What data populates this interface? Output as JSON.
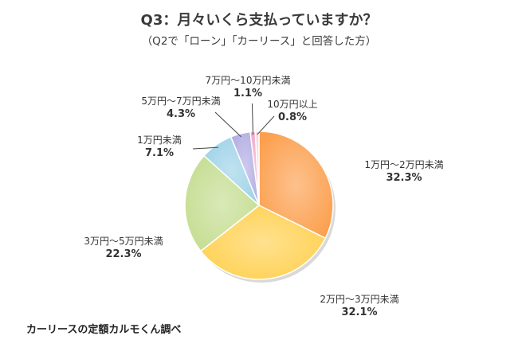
{
  "title": "Q3：月々いくら支払っていますか？",
  "subtitle": "（Q2で「ローン」「カーリース」と回答した方）",
  "source": "カーリースの定額カルモくん調べ",
  "chart_data": {
    "type": "pie",
    "title": "Q3：月々いくら支払っていますか？",
    "subtitle": "（Q2で「ローン」「カーリース」と回答した方）",
    "slices": [
      {
        "label": "1万円〜2万円未満",
        "value": 32.3,
        "value_label": "32.3%",
        "color": "#FCA04F"
      },
      {
        "label": "2万円〜3万円未満",
        "value": 32.1,
        "value_label": "32.1%",
        "color": "#FFD152"
      },
      {
        "label": "3万円〜5万円未満",
        "value": 22.3,
        "value_label": "22.3%",
        "color": "#C5DD91"
      },
      {
        "label": "1万円未満",
        "value": 7.1,
        "value_label": "7.1%",
        "color": "#9ED3E8"
      },
      {
        "label": "5万円〜7万円未満",
        "value": 4.3,
        "value_label": "4.3%",
        "color": "#B3AEE3"
      },
      {
        "label": "7万円〜10万円未満",
        "value": 1.1,
        "value_label": "1.1%",
        "color": "#F2A9C8"
      },
      {
        "label": "10万円以上",
        "value": 0.8,
        "value_label": "0.8%",
        "color": "#F7D3DC"
      }
    ],
    "start": "top",
    "direction": "clockwise",
    "legend": "none"
  }
}
